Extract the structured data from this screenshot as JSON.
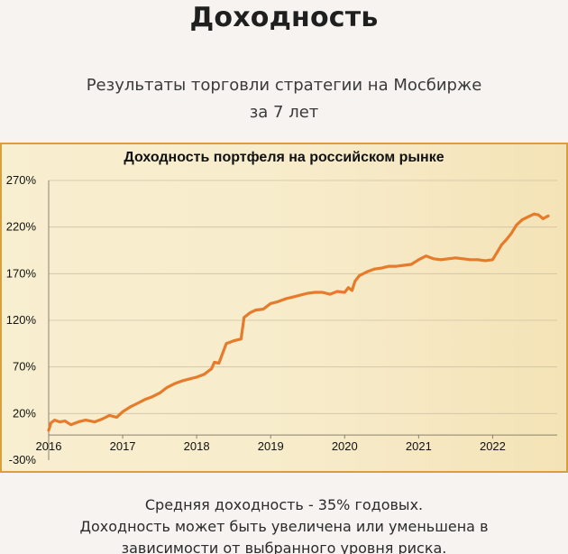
{
  "header": {
    "title": "Доходность",
    "subtitle": "Результаты торговли стратегии на Мосбирже за 7 лет"
  },
  "footer": {
    "line1": "Средняя доходность - 35% годовых.",
    "line2": "Доходность может быть увеличена или уменьшена в зависимости от выбранного уровня риска."
  },
  "chart_data": {
    "type": "line",
    "title": "Доходность портфеля на российском рынке",
    "xlabel": "",
    "ylabel": "",
    "ylim": [
      -30,
      270
    ],
    "yticks": [
      -30,
      20,
      70,
      120,
      170,
      220,
      270
    ],
    "ytick_labels": [
      "-30%",
      "20%",
      "70%",
      "120%",
      "170%",
      "220%",
      "270%"
    ],
    "xlim": [
      2016.0,
      2022.75
    ],
    "xticks": [
      2016,
      2017,
      2018,
      2019,
      2020,
      2021,
      2022
    ],
    "xtick_labels": [
      "2016",
      "2017",
      "2018",
      "2019",
      "2020",
      "2021",
      "2022"
    ],
    "grid": {
      "horizontal": true,
      "vertical": false
    },
    "line_color": "#e67b2b",
    "series": [
      {
        "x": [
          2016.0,
          2016.03,
          2016.08,
          2016.15,
          2016.22,
          2016.3,
          2016.4,
          2016.5,
          2016.62,
          2016.72,
          2016.82,
          2016.92,
          2017.0,
          2017.1,
          2017.2,
          2017.3,
          2017.4,
          2017.5,
          2017.6,
          2017.7,
          2017.8,
          2017.9,
          2018.0,
          2018.1,
          2018.2,
          2018.24,
          2018.3,
          2018.4,
          2018.5,
          2018.6,
          2018.64,
          2018.72,
          2018.8,
          2018.9,
          2019.0,
          2019.1,
          2019.2,
          2019.3,
          2019.4,
          2019.5,
          2019.6,
          2019.7,
          2019.8,
          2019.9,
          2020.0,
          2020.05,
          2020.1,
          2020.14,
          2020.2,
          2020.3,
          2020.4,
          2020.5,
          2020.6,
          2020.7,
          2020.8,
          2020.9,
          2021.0,
          2021.1,
          2021.2,
          2021.3,
          2021.4,
          2021.5,
          2021.6,
          2021.7,
          2021.8,
          2021.9,
          2022.0,
          2022.06,
          2022.12,
          2022.18,
          2022.25,
          2022.32,
          2022.4,
          2022.48,
          2022.56,
          2022.62,
          2022.68,
          2022.75
        ],
        "values": [
          2,
          10,
          13,
          11,
          12,
          8,
          11,
          13,
          11,
          14,
          18,
          16,
          22,
          27,
          31,
          35,
          38,
          42,
          48,
          52,
          55,
          57,
          59,
          62,
          68,
          75,
          74,
          95,
          98,
          100,
          123,
          128,
          131,
          132,
          138,
          140,
          143,
          145,
          147,
          149,
          150,
          150,
          148,
          151,
          150,
          155,
          152,
          162,
          168,
          172,
          175,
          176,
          178,
          178,
          179,
          180,
          185,
          189,
          186,
          185,
          186,
          187,
          186,
          185,
          185,
          184,
          185,
          193,
          201,
          206,
          213,
          222,
          228,
          231,
          234,
          233,
          229,
          232
        ]
      }
    ]
  }
}
